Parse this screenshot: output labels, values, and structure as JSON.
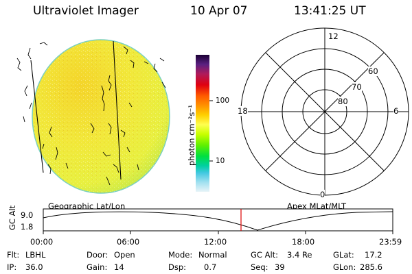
{
  "header": {
    "title": "Ultraviolet Imager",
    "date": "10 Apr 07",
    "time": "13:41:25 UT"
  },
  "colorbar": {
    "unit_label": "photon cm⁻²s⁻¹",
    "ticks": [
      "100",
      "10"
    ],
    "scale": "log",
    "colors": [
      "#1a0033",
      "#5a2080",
      "#b01a5a",
      "#e00010",
      "#ff5a00",
      "#ff9a00",
      "#ffd000",
      "#ffff50",
      "#c8ff00",
      "#60f000",
      "#00e040",
      "#00d0a0",
      "#40c8e0",
      "#a0e0f0",
      "#e8f4f8"
    ]
  },
  "polar_grid": {
    "mlt_labels": {
      "top": "12",
      "right": "6",
      "bottom": "0",
      "left": "18"
    },
    "lat_labels": [
      "60",
      "70",
      "80"
    ]
  },
  "timeline": {
    "left_label": "Geographic Lat/Lon",
    "right_label": "Apex MLat/MLT",
    "y_axis_label": "GC Alt",
    "y_ticks": [
      "9.0",
      "1.8"
    ],
    "x_ticks": [
      "00:00",
      "06:00",
      "12:00",
      "18:00",
      "23:59"
    ],
    "current_time_marker": "13:41:25",
    "marker_color": "#dd0000"
  },
  "info": {
    "filter_label": "Flt:",
    "filter_value": "LBHL",
    "ip_label": "IP:",
    "ip_value": "36.0",
    "door_label": "Door:",
    "door_value": "Open",
    "gain_label": "Gain:",
    "gain_value": "14",
    "mode_label": "Mode:",
    "mode_value": "Normal",
    "dsp_label": "Dsp:",
    "dsp_value": "0.7",
    "gcalt_label": "GC Alt:",
    "gcalt_value": "3.4 Re",
    "seq_label": "Seq:",
    "seq_value": "39",
    "glat_label": "GLat:",
    "glat_value": "17.2",
    "glon_label": "GLon:",
    "glon_value": "285.6"
  }
}
